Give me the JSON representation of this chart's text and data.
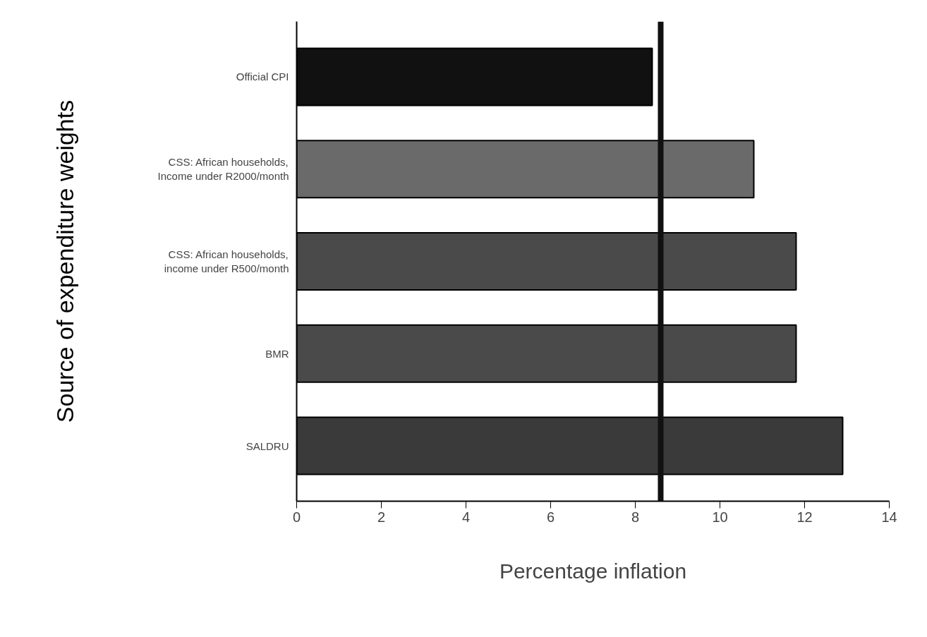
{
  "chart_data": {
    "type": "bar",
    "orientation": "horizontal",
    "categories": [
      "Official CPI",
      "CSS: African households,\nIncome under R2000/month",
      "CSS: African households,\nincome under R500/month",
      "BMR",
      "SALDRU"
    ],
    "values": [
      8.4,
      10.8,
      11.8,
      11.8,
      12.9
    ],
    "colors": [
      "#111111",
      "#6a6a6a",
      "#4a4a4a",
      "#4a4a4a",
      "#3a3a3a"
    ],
    "xlim": [
      0,
      14
    ],
    "xticks": [
      0,
      2,
      4,
      6,
      8,
      10,
      12,
      14
    ],
    "xlabel": "Percentage inflation",
    "ylabel": "Source of expenditure weights",
    "ref_lines": [
      {
        "axis": "x",
        "value": 8.6,
        "color": "#111111"
      }
    ],
    "grid": false
  }
}
